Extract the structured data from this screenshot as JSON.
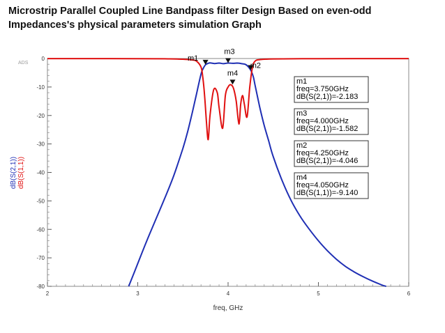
{
  "title": "Microstrip Parallel Coupled Line Bandpass filter Design Based on even-odd Impedances's physical parameters simulation Graph",
  "chart_data": {
    "type": "line",
    "watermark": "ADS",
    "xlabel": "freq, GHz",
    "ylabels": [
      "dB(S(2,1))",
      "dB(S(1,1))"
    ],
    "xlim": [
      2,
      6
    ],
    "ylim": [
      -80,
      0
    ],
    "x_ticks": [
      "2",
      "3",
      "4",
      "5",
      "6"
    ],
    "y_ticks": [
      "0",
      "-10",
      "-20",
      "-30",
      "-40",
      "-50",
      "-60",
      "-70",
      "-80"
    ],
    "grid": false,
    "series": [
      {
        "name": "dB(S(2,1))",
        "color": "#1f2fb4",
        "x": [
          2.9,
          3.0,
          3.1,
          3.2,
          3.3,
          3.4,
          3.5,
          3.55,
          3.6,
          3.65,
          3.7,
          3.72,
          3.75,
          3.78,
          3.8,
          3.85,
          3.9,
          3.95,
          4.0,
          4.05,
          4.1,
          4.15,
          4.2,
          4.25,
          4.28,
          4.3,
          4.35,
          4.4,
          4.45,
          4.5,
          4.6,
          4.7,
          4.8,
          4.9,
          5.0,
          5.1,
          5.2,
          5.3,
          5.4,
          5.5,
          5.6,
          5.7,
          5.75
        ],
        "y": [
          -80,
          -72,
          -64,
          -56.5,
          -49,
          -41,
          -31.5,
          -26,
          -19.5,
          -12.5,
          -5.5,
          -3.8,
          -2.2,
          -1.7,
          -1.55,
          -1.75,
          -1.6,
          -1.8,
          -1.58,
          -1.7,
          -1.6,
          -1.8,
          -2.2,
          -4.05,
          -6.5,
          -9.5,
          -17,
          -23.5,
          -29,
          -34.5,
          -43,
          -50,
          -55.5,
          -60,
          -64,
          -67.5,
          -70.5,
          -73,
          -75,
          -76.7,
          -78.2,
          -79.5,
          -80
        ]
      },
      {
        "name": "dB(S(1,1))",
        "color": "#e01010",
        "x": [
          2.0,
          2.5,
          3.0,
          3.3,
          3.5,
          3.6,
          3.65,
          3.7,
          3.72,
          3.74,
          3.76,
          3.78,
          3.8,
          3.84,
          3.88,
          3.9,
          3.94,
          3.97,
          4.0,
          4.03,
          4.06,
          4.09,
          4.12,
          4.14,
          4.16,
          4.18,
          4.21,
          4.24,
          4.27,
          4.3,
          4.35,
          4.5,
          5.0,
          5.5,
          6.0
        ],
        "y": [
          -0.02,
          -0.02,
          -0.04,
          -0.1,
          -0.25,
          -0.5,
          -0.9,
          -3,
          -6.5,
          -13,
          -22,
          -28.5,
          -20,
          -11,
          -12,
          -17,
          -24.5,
          -13,
          -10,
          -9.2,
          -10.5,
          -15,
          -23,
          -16,
          -13,
          -16,
          -20.5,
          -10,
          -3,
          -0.9,
          -0.4,
          -0.15,
          -0.05,
          -0.03,
          -0.02
        ]
      }
    ],
    "markers": [
      {
        "id": "m1",
        "series": "dB(S(2,1))",
        "x": 3.75,
        "y": -2.183,
        "lines": [
          "m1",
          "freq=3.750GHz",
          "dB(S(2,1))=-2.183"
        ]
      },
      {
        "id": "m3",
        "series": "dB(S(2,1))",
        "x": 4.0,
        "y": -1.582,
        "lines": [
          "m3",
          "freq=4.000GHz",
          "dB(S(2,1))=-1.582"
        ]
      },
      {
        "id": "m2",
        "series": "dB(S(2,1))",
        "x": 4.25,
        "y": -4.046,
        "lines": [
          "m2",
          "freq=4.250GHz",
          "dB(S(2,1))=-4.046"
        ]
      },
      {
        "id": "m4",
        "series": "dB(S(1,1))",
        "x": 4.05,
        "y": -9.14,
        "lines": [
          "m4",
          "freq=4.050GHz",
          "dB(S(1,1))=-9.140"
        ]
      }
    ]
  }
}
